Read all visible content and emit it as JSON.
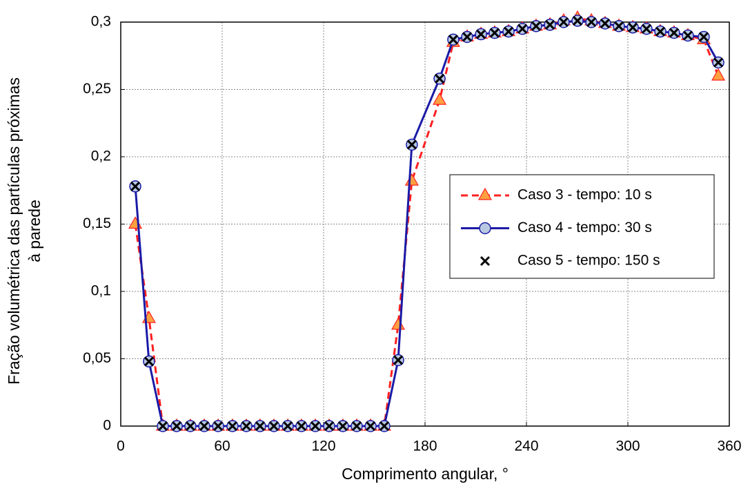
{
  "chart_data": {
    "type": "line",
    "xlabel": "Comprimento angular, °",
    "ylabel": [
      "Fração volumétrica das partículas próximas",
      "à parede"
    ],
    "x": [
      8.6,
      16.7,
      24.9,
      33.1,
      41.2,
      49.4,
      57.6,
      66.1,
      74.3,
      82.4,
      90.6,
      98.8,
      106.9,
      115.1,
      123.3,
      131.4,
      139.6,
      147.8,
      155.9,
      164.1,
      172.2,
      188.6,
      196.7,
      204.9,
      213.1,
      221.2,
      229.4,
      237.6,
      245.7,
      253.9,
      262.0,
      270.2,
      278.4,
      286.5,
      294.7,
      302.9,
      311.0,
      319.2,
      327.3,
      335.5,
      344.9,
      353.5
    ],
    "series": [
      {
        "name": "Caso 3 - tempo: 10 s",
        "color": "#ff2020",
        "marker": "triangle",
        "line": "dashed",
        "values": [
          0.15,
          0.08,
          0,
          0,
          0,
          0,
          0,
          0,
          0,
          0,
          0,
          0,
          0,
          0,
          0,
          0,
          0,
          0,
          0,
          0.075,
          0.182,
          0.242,
          0.285,
          0.289,
          0.291,
          0.292,
          0.293,
          0.295,
          0.297,
          0.298,
          0.301,
          0.303,
          0.301,
          0.299,
          0.297,
          0.296,
          0.295,
          0.293,
          0.292,
          0.29,
          0.287,
          0.26
        ]
      },
      {
        "name": "Caso 4 - tempo: 30 s",
        "color": "#1a1aa6",
        "marker": "circle",
        "line": "solid",
        "values": [
          0.178,
          0.048,
          0,
          0,
          0,
          0,
          0,
          0,
          0,
          0,
          0,
          0,
          0,
          0,
          0,
          0,
          0,
          0,
          0,
          0.049,
          0.209,
          0.258,
          0.287,
          0.289,
          0.291,
          0.292,
          0.293,
          0.295,
          0.297,
          0.298,
          0.3,
          0.301,
          0.3,
          0.299,
          0.297,
          0.296,
          0.295,
          0.293,
          0.292,
          0.29,
          0.289,
          0.27
        ]
      },
      {
        "name": "Caso 5 - tempo: 150 s",
        "color": "#000000",
        "marker": "cross",
        "line": "none",
        "values": [
          0.178,
          0.048,
          0,
          0,
          0,
          0,
          0,
          0,
          0,
          0,
          0,
          0,
          0,
          0,
          0,
          0,
          0,
          0,
          0,
          0.049,
          0.209,
          0.258,
          0.287,
          0.289,
          0.291,
          0.292,
          0.293,
          0.295,
          0.297,
          0.298,
          0.3,
          0.301,
          0.3,
          0.299,
          0.297,
          0.296,
          0.295,
          0.293,
          0.292,
          0.29,
          0.289,
          0.27
        ]
      }
    ],
    "xlim": [
      0,
      360
    ],
    "xticks": [
      0,
      60,
      120,
      180,
      240,
      300,
      360
    ],
    "ylim": [
      0,
      0.3
    ],
    "yticks": [
      0,
      {
        "value": 0.05,
        "label": "0,05"
      },
      {
        "value": 0.1,
        "label": "0,1"
      },
      {
        "value": 0.15,
        "label": "0,15"
      },
      {
        "value": 0.2,
        "label": "0,2"
      },
      {
        "value": 0.25,
        "label": "0,25"
      },
      {
        "value": 0.3,
        "label": "0,3"
      }
    ],
    "grid": true,
    "legend": "right"
  }
}
